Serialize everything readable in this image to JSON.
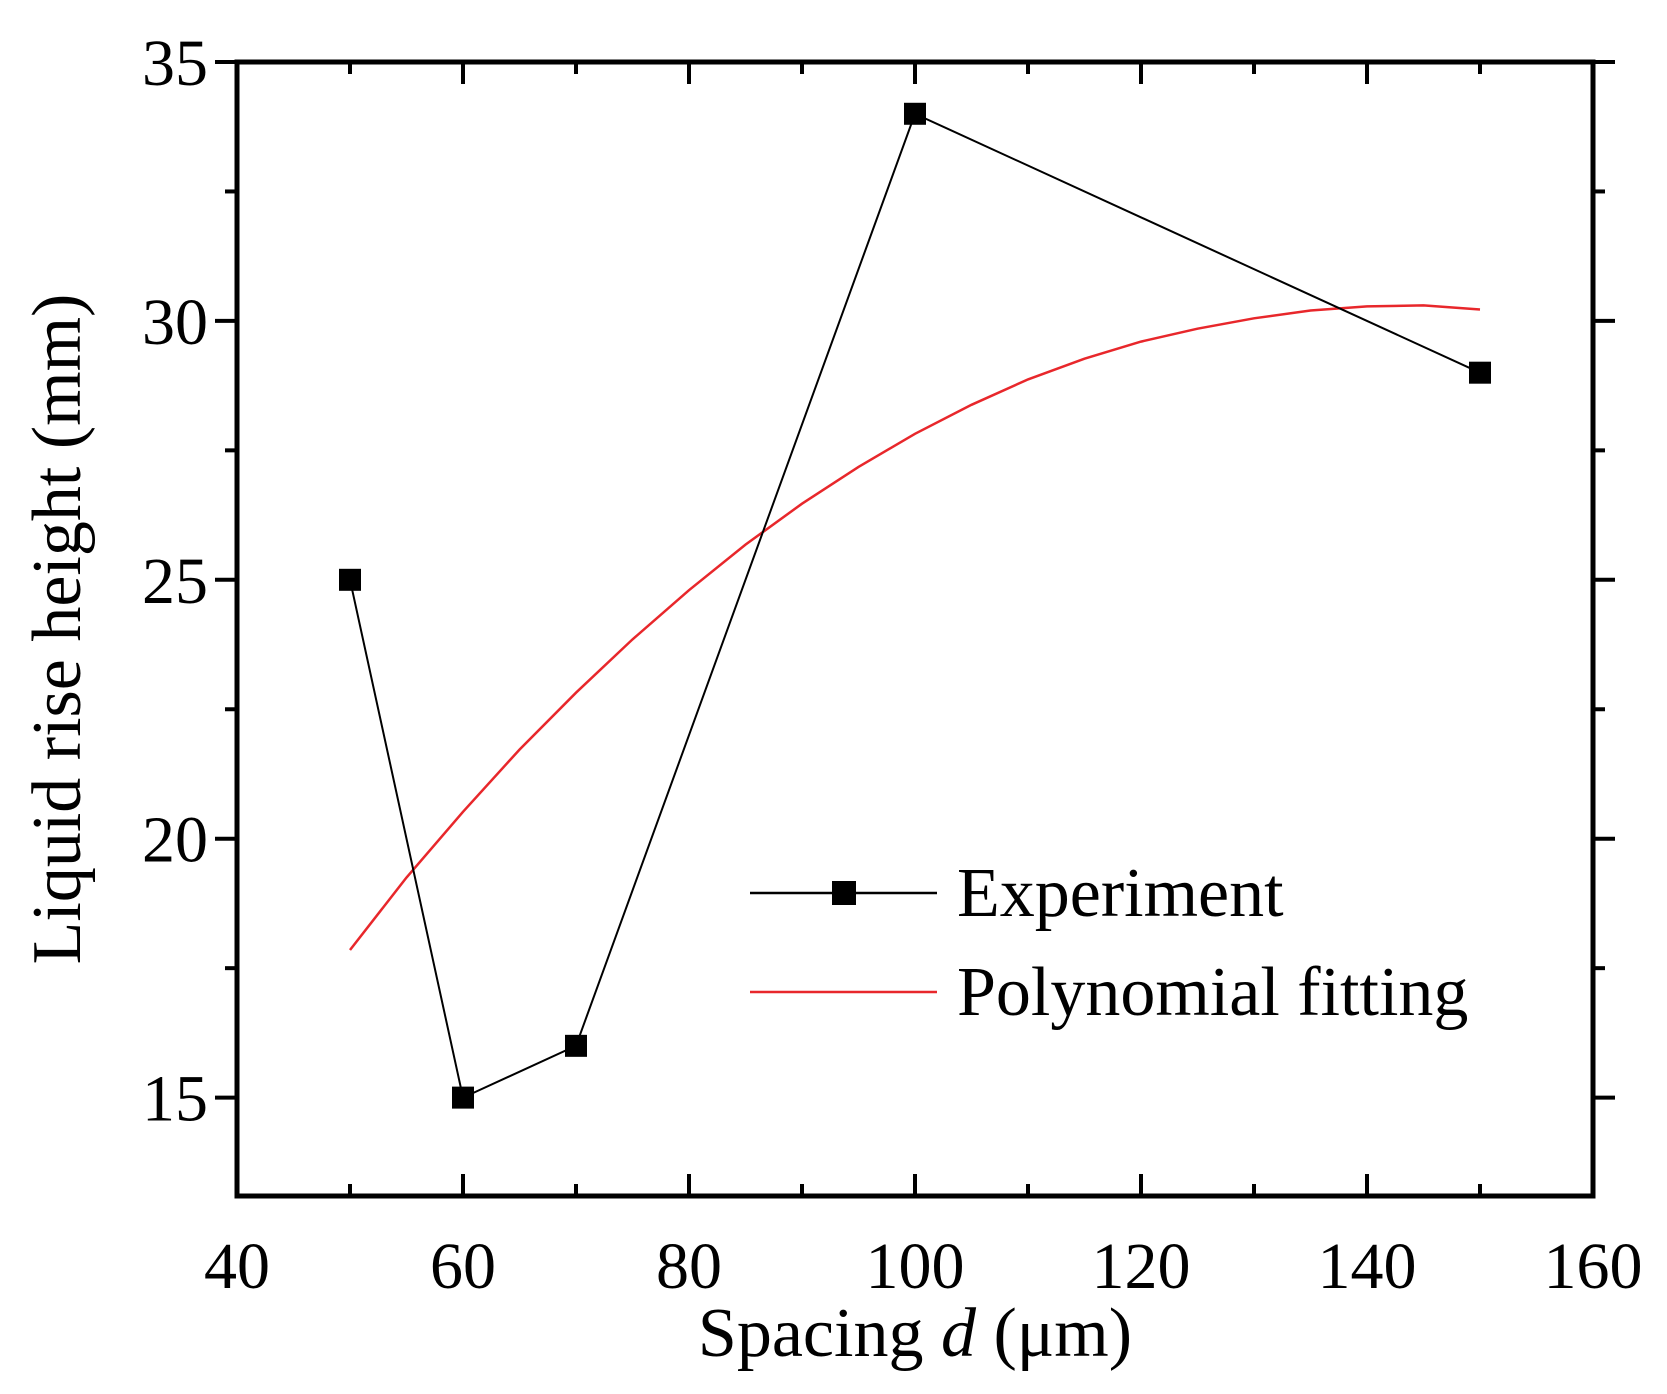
{
  "chart_data": {
    "type": "line",
    "title": "",
    "xlabel_main": "Spacing ",
    "xlabel_var": "d",
    "xlabel_unit": " (μm)",
    "ylabel": "Liquid rise height (mm)",
    "xlim": [
      40,
      160
    ],
    "ylim": [
      13.1,
      35
    ],
    "x_ticks": [
      40,
      60,
      80,
      100,
      120,
      140,
      160
    ],
    "y_ticks": [
      15,
      20,
      25,
      30,
      35
    ],
    "x_tick_labels": [
      "40",
      "60",
      "80",
      "100",
      "120",
      "140",
      "160"
    ],
    "y_tick_labels": [
      "15",
      "20",
      "25",
      "30",
      "35"
    ],
    "x_minor_step": 10,
    "y_minor_step": 2.5,
    "grid": false,
    "legend_position": "lower-right",
    "series": [
      {
        "name": "Experiment",
        "color": "#000000",
        "marker": "square",
        "x": [
          50,
          60,
          70,
          100,
          150
        ],
        "y": [
          25,
          15,
          16,
          34,
          29
        ]
      },
      {
        "name": "Polynomial fitting",
        "color": "#e8272b",
        "marker": "none",
        "x": [
          50,
          55,
          60,
          65,
          70,
          75,
          80,
          85,
          90,
          95,
          100,
          105,
          110,
          115,
          120,
          125,
          130,
          135,
          140,
          145,
          150
        ],
        "y": [
          17.85,
          19.25,
          20.52,
          21.72,
          22.82,
          23.85,
          24.8,
          25.68,
          26.47,
          27.18,
          27.82,
          28.38,
          28.87,
          29.27,
          29.6,
          29.85,
          30.05,
          30.2,
          30.28,
          30.3,
          30.22
        ]
      }
    ]
  }
}
